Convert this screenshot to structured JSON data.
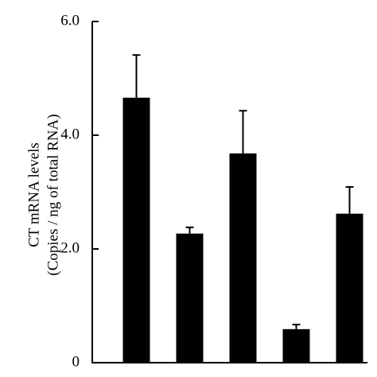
{
  "chart_data": {
    "type": "bar",
    "ylabel": [
      "CT mRNA levels",
      "(Copies / ng of total RNA)"
    ],
    "categories": [
      null,
      null,
      null,
      null,
      null
    ],
    "values": [
      4.66,
      2.27,
      3.68,
      0.59,
      2.62
    ],
    "errors": [
      0.75,
      0.11,
      0.75,
      0.08,
      0.47
    ],
    "color": "#000000",
    "ylim": [
      0,
      6
    ],
    "yticks": [
      0,
      {
        "value": 2,
        "label": "2.0"
      },
      {
        "value": 4,
        "label": "4.0"
      },
      {
        "value": 6,
        "label": "6.0"
      }
    ],
    "grid": false
  }
}
